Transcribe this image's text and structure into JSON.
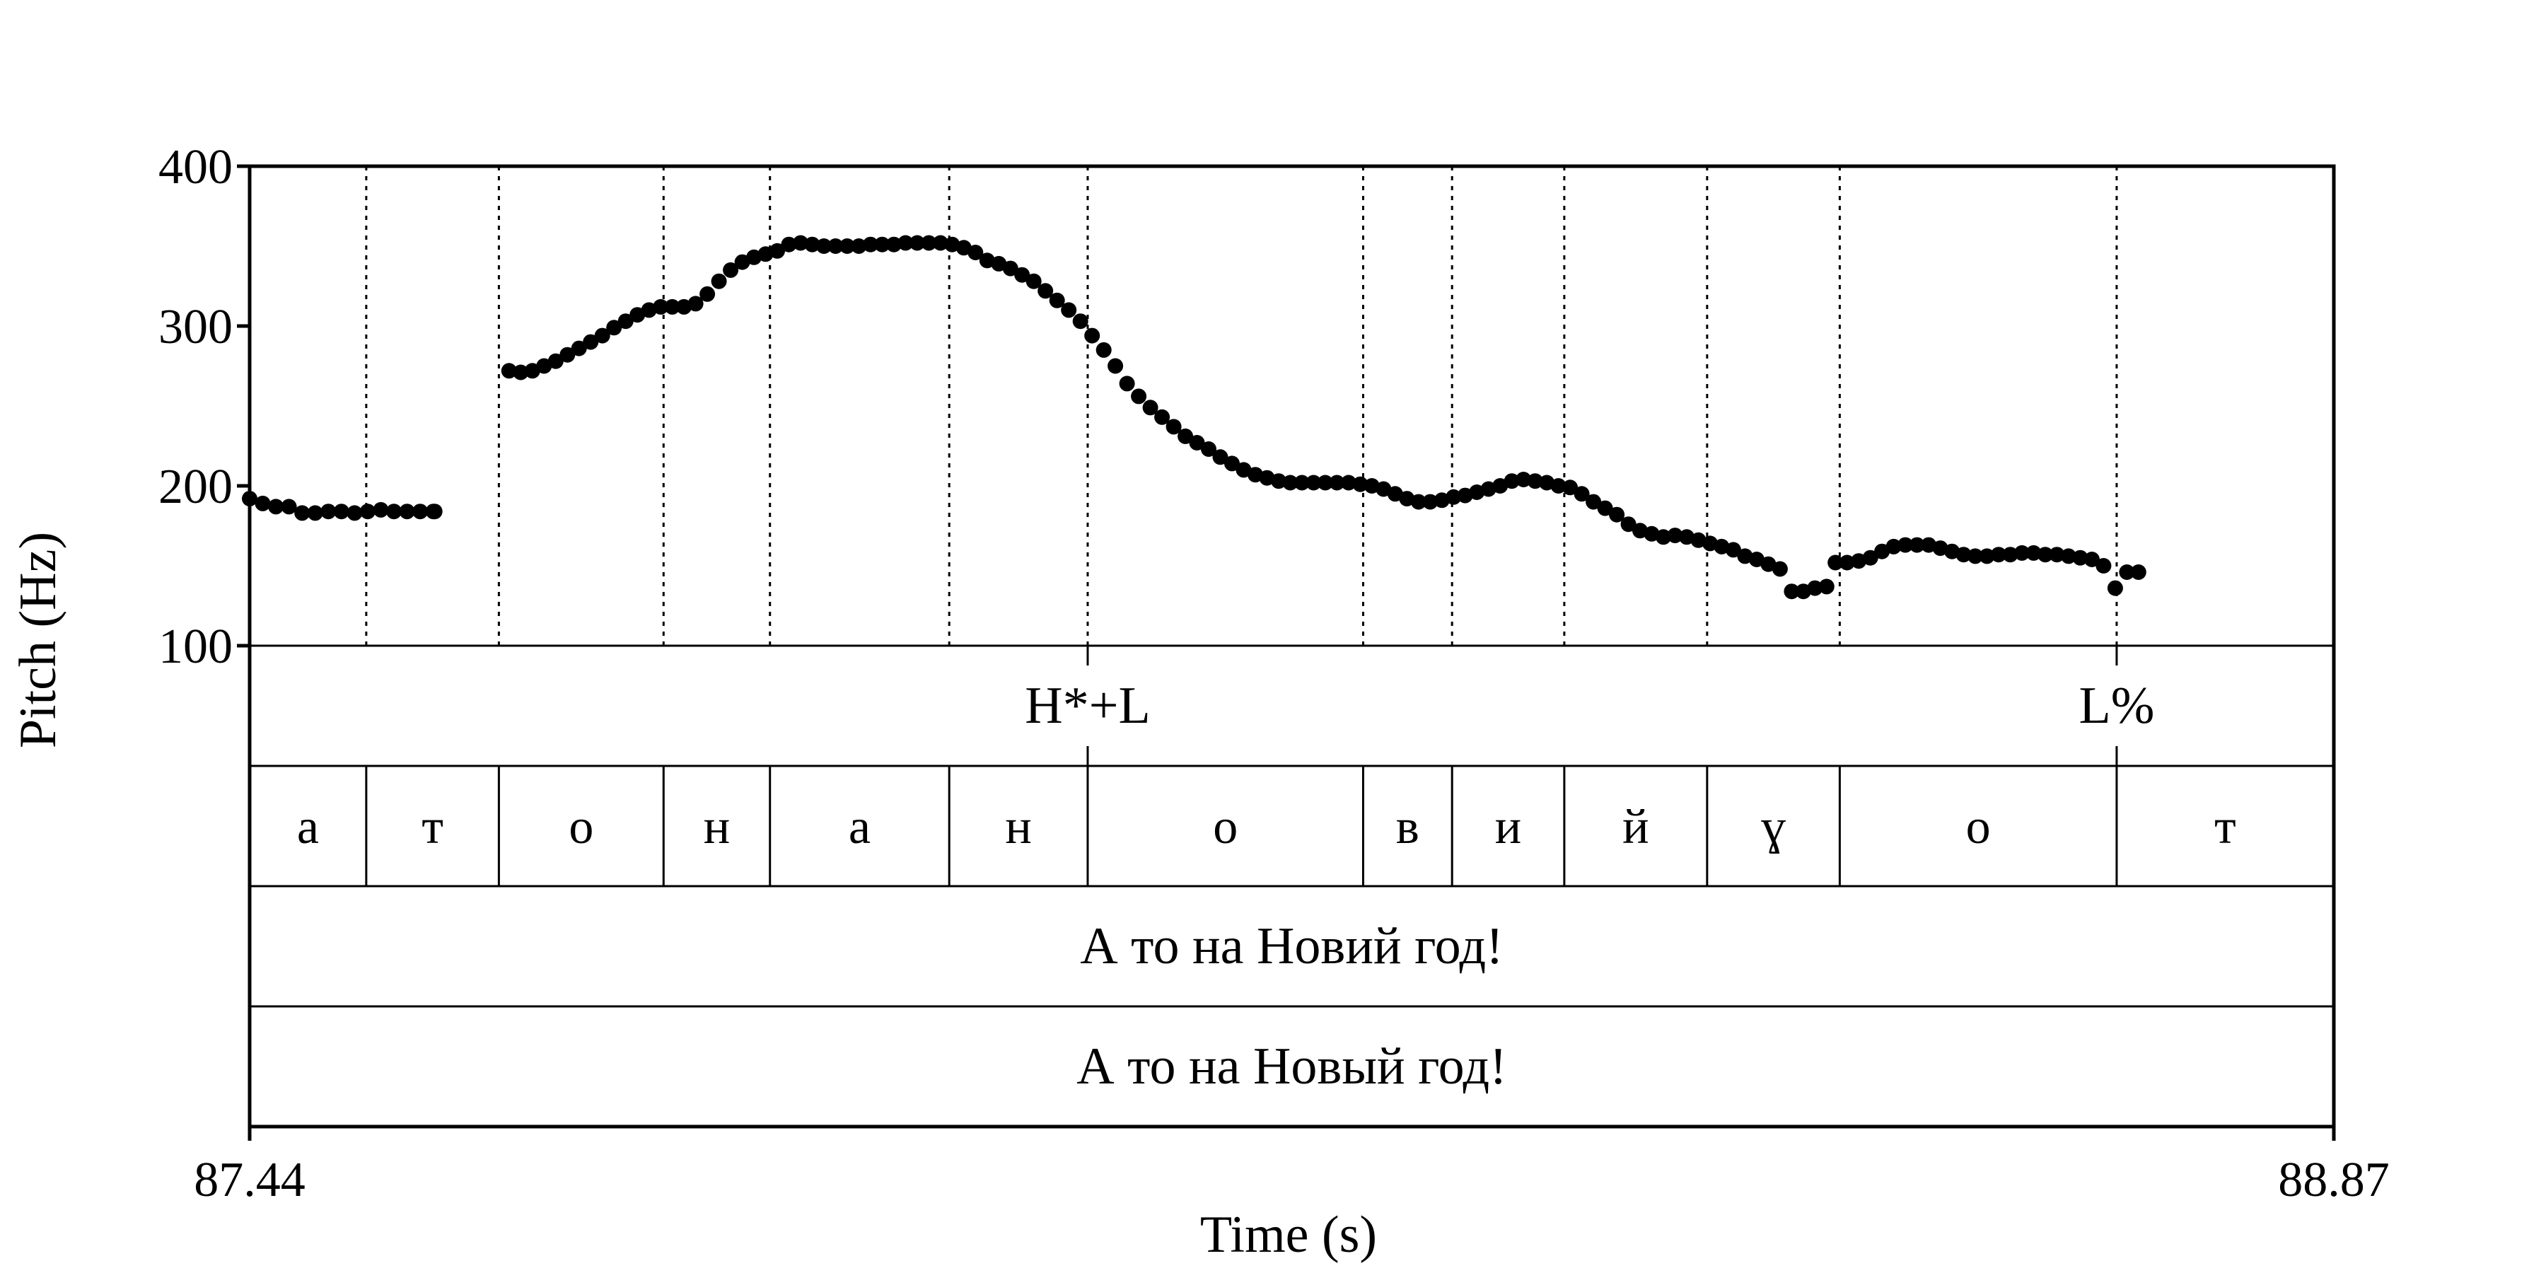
{
  "chart_data": {
    "type": "scatter",
    "xlabel": "Time (s)",
    "ylabel": "Pitch (Hz)",
    "xlim": [
      87.44,
      88.87
    ],
    "ylim": [
      100,
      400
    ],
    "x_tick_labels": [
      "87.44",
      "88.87"
    ],
    "y_ticks": [
      100,
      200,
      300,
      400
    ],
    "y_tick_labels": [
      "100",
      "200",
      "300",
      "400"
    ],
    "grid": false,
    "boundaries": [
      87.52,
      87.611,
      87.724,
      87.797,
      87.92,
      88.015,
      88.204,
      88.265,
      88.342,
      88.44,
      88.531,
      88.721
    ],
    "series": [
      {
        "values": [
          [
            87.44,
            192
          ],
          [
            87.449,
            189
          ],
          [
            87.458,
            187
          ],
          [
            87.467,
            187
          ],
          [
            87.476,
            183
          ],
          [
            87.485,
            183
          ],
          [
            87.494,
            184
          ],
          [
            87.503,
            184
          ],
          [
            87.512,
            183
          ],
          [
            87.521,
            184
          ],
          [
            87.53,
            185
          ],
          [
            87.539,
            184
          ],
          [
            87.548,
            184
          ],
          [
            87.557,
            184
          ],
          [
            87.566,
            184
          ],
          [
            87.567,
            184
          ],
          [
            87.618,
            272
          ],
          [
            87.626,
            271
          ],
          [
            87.634,
            272
          ],
          [
            87.642,
            275
          ],
          [
            87.65,
            278
          ],
          [
            87.658,
            282
          ],
          [
            87.666,
            286
          ],
          [
            87.674,
            290
          ],
          [
            87.682,
            294
          ],
          [
            87.69,
            299
          ],
          [
            87.698,
            303
          ],
          [
            87.706,
            307
          ],
          [
            87.714,
            310
          ],
          [
            87.722,
            312
          ],
          [
            87.73,
            312
          ],
          [
            87.738,
            312
          ],
          [
            87.746,
            314
          ],
          [
            87.754,
            320
          ],
          [
            87.762,
            328
          ],
          [
            87.77,
            335
          ],
          [
            87.778,
            340
          ],
          [
            87.786,
            343
          ],
          [
            87.794,
            345
          ],
          [
            87.802,
            347
          ],
          [
            87.81,
            351
          ],
          [
            87.818,
            352
          ],
          [
            87.826,
            351
          ],
          [
            87.834,
            350
          ],
          [
            87.842,
            350
          ],
          [
            87.85,
            350
          ],
          [
            87.858,
            350
          ],
          [
            87.866,
            351
          ],
          [
            87.874,
            351
          ],
          [
            87.882,
            351
          ],
          [
            87.89,
            352
          ],
          [
            87.898,
            352
          ],
          [
            87.906,
            352
          ],
          [
            87.914,
            352
          ],
          [
            87.922,
            351
          ],
          [
            87.93,
            349
          ],
          [
            87.938,
            346
          ],
          [
            87.946,
            341
          ],
          [
            87.954,
            339
          ],
          [
            87.962,
            336
          ],
          [
            87.97,
            332
          ],
          [
            87.978,
            328
          ],
          [
            87.986,
            322
          ],
          [
            87.994,
            316
          ],
          [
            88.002,
            310
          ],
          [
            88.01,
            303
          ],
          [
            88.018,
            294
          ],
          [
            88.026,
            285
          ],
          [
            88.034,
            275
          ],
          [
            88.042,
            264
          ],
          [
            88.05,
            256
          ],
          [
            88.058,
            249
          ],
          [
            88.066,
            243
          ],
          [
            88.074,
            237
          ],
          [
            88.082,
            231
          ],
          [
            88.09,
            227
          ],
          [
            88.098,
            223
          ],
          [
            88.106,
            218
          ],
          [
            88.114,
            214
          ],
          [
            88.122,
            210
          ],
          [
            88.13,
            207
          ],
          [
            88.138,
            205
          ],
          [
            88.146,
            203
          ],
          [
            88.154,
            202
          ],
          [
            88.162,
            202
          ],
          [
            88.17,
            202
          ],
          [
            88.178,
            202
          ],
          [
            88.186,
            202
          ],
          [
            88.194,
            202
          ],
          [
            88.202,
            201
          ],
          [
            88.21,
            200
          ],
          [
            88.218,
            198
          ],
          [
            88.226,
            195
          ],
          [
            88.234,
            192
          ],
          [
            88.242,
            190
          ],
          [
            88.25,
            190
          ],
          [
            88.258,
            191
          ],
          [
            88.266,
            193
          ],
          [
            88.274,
            194
          ],
          [
            88.282,
            196
          ],
          [
            88.29,
            198
          ],
          [
            88.298,
            200
          ],
          [
            88.306,
            203
          ],
          [
            88.314,
            204
          ],
          [
            88.322,
            203
          ],
          [
            88.33,
            202
          ],
          [
            88.338,
            200
          ],
          [
            88.346,
            199
          ],
          [
            88.354,
            195
          ],
          [
            88.362,
            190
          ],
          [
            88.37,
            186
          ],
          [
            88.378,
            182
          ],
          [
            88.386,
            176
          ],
          [
            88.394,
            172
          ],
          [
            88.402,
            170
          ],
          [
            88.41,
            168
          ],
          [
            88.418,
            169
          ],
          [
            88.426,
            168
          ],
          [
            88.434,
            166
          ],
          [
            88.442,
            164
          ],
          [
            88.45,
            162
          ],
          [
            88.458,
            160
          ],
          [
            88.466,
            156
          ],
          [
            88.474,
            154
          ],
          [
            88.482,
            151
          ],
          [
            88.49,
            148
          ],
          [
            88.498,
            134
          ],
          [
            88.506,
            134
          ],
          [
            88.514,
            136
          ],
          [
            88.522,
            137
          ],
          [
            88.528,
            152
          ],
          [
            88.536,
            152
          ],
          [
            88.544,
            153
          ],
          [
            88.552,
            155
          ],
          [
            88.56,
            159
          ],
          [
            88.568,
            162
          ],
          [
            88.576,
            163
          ],
          [
            88.584,
            163
          ],
          [
            88.592,
            163
          ],
          [
            88.6,
            161
          ],
          [
            88.608,
            159
          ],
          [
            88.616,
            157
          ],
          [
            88.624,
            156
          ],
          [
            88.632,
            156
          ],
          [
            88.64,
            157
          ],
          [
            88.648,
            157
          ],
          [
            88.656,
            158
          ],
          [
            88.664,
            158
          ],
          [
            88.672,
            157
          ],
          [
            88.68,
            157
          ],
          [
            88.688,
            156
          ],
          [
            88.696,
            155
          ],
          [
            88.704,
            154
          ],
          [
            88.712,
            150
          ],
          [
            88.72,
            136
          ],
          [
            88.728,
            146
          ],
          [
            88.736,
            146
          ]
        ]
      }
    ]
  },
  "tiers": [
    {
      "name": "tone-tier",
      "intervals": [],
      "points": [
        {
          "time": 88.015,
          "label": "H*+L"
        },
        {
          "time": 88.721,
          "label": "L%"
        }
      ]
    },
    {
      "name": "phone-tier",
      "intervals": [
        {
          "start": 87.44,
          "end": 87.52,
          "label": "а"
        },
        {
          "start": 87.52,
          "end": 87.611,
          "label": "т"
        },
        {
          "start": 87.611,
          "end": 87.724,
          "label": "о"
        },
        {
          "start": 87.724,
          "end": 87.797,
          "label": "н"
        },
        {
          "start": 87.797,
          "end": 87.92,
          "label": "а"
        },
        {
          "start": 87.92,
          "end": 88.015,
          "label": "н"
        },
        {
          "start": 88.015,
          "end": 88.204,
          "label": "о"
        },
        {
          "start": 88.204,
          "end": 88.265,
          "label": "в"
        },
        {
          "start": 88.265,
          "end": 88.342,
          "label": "и"
        },
        {
          "start": 88.342,
          "end": 88.44,
          "label": "й"
        },
        {
          "start": 88.44,
          "end": 88.531,
          "label": "ɣ"
        },
        {
          "start": 88.531,
          "end": 88.721,
          "label": "о"
        },
        {
          "start": 88.721,
          "end": 88.87,
          "label": "т"
        }
      ],
      "points": []
    },
    {
      "name": "sentence-tier-1",
      "intervals": [
        {
          "start": 87.44,
          "end": 88.87,
          "label": "А то на Новий год!"
        }
      ],
      "points": []
    },
    {
      "name": "sentence-tier-2",
      "intervals": [
        {
          "start": 87.44,
          "end": 88.87,
          "label": "А то на Новый год!"
        }
      ],
      "points": []
    }
  ]
}
